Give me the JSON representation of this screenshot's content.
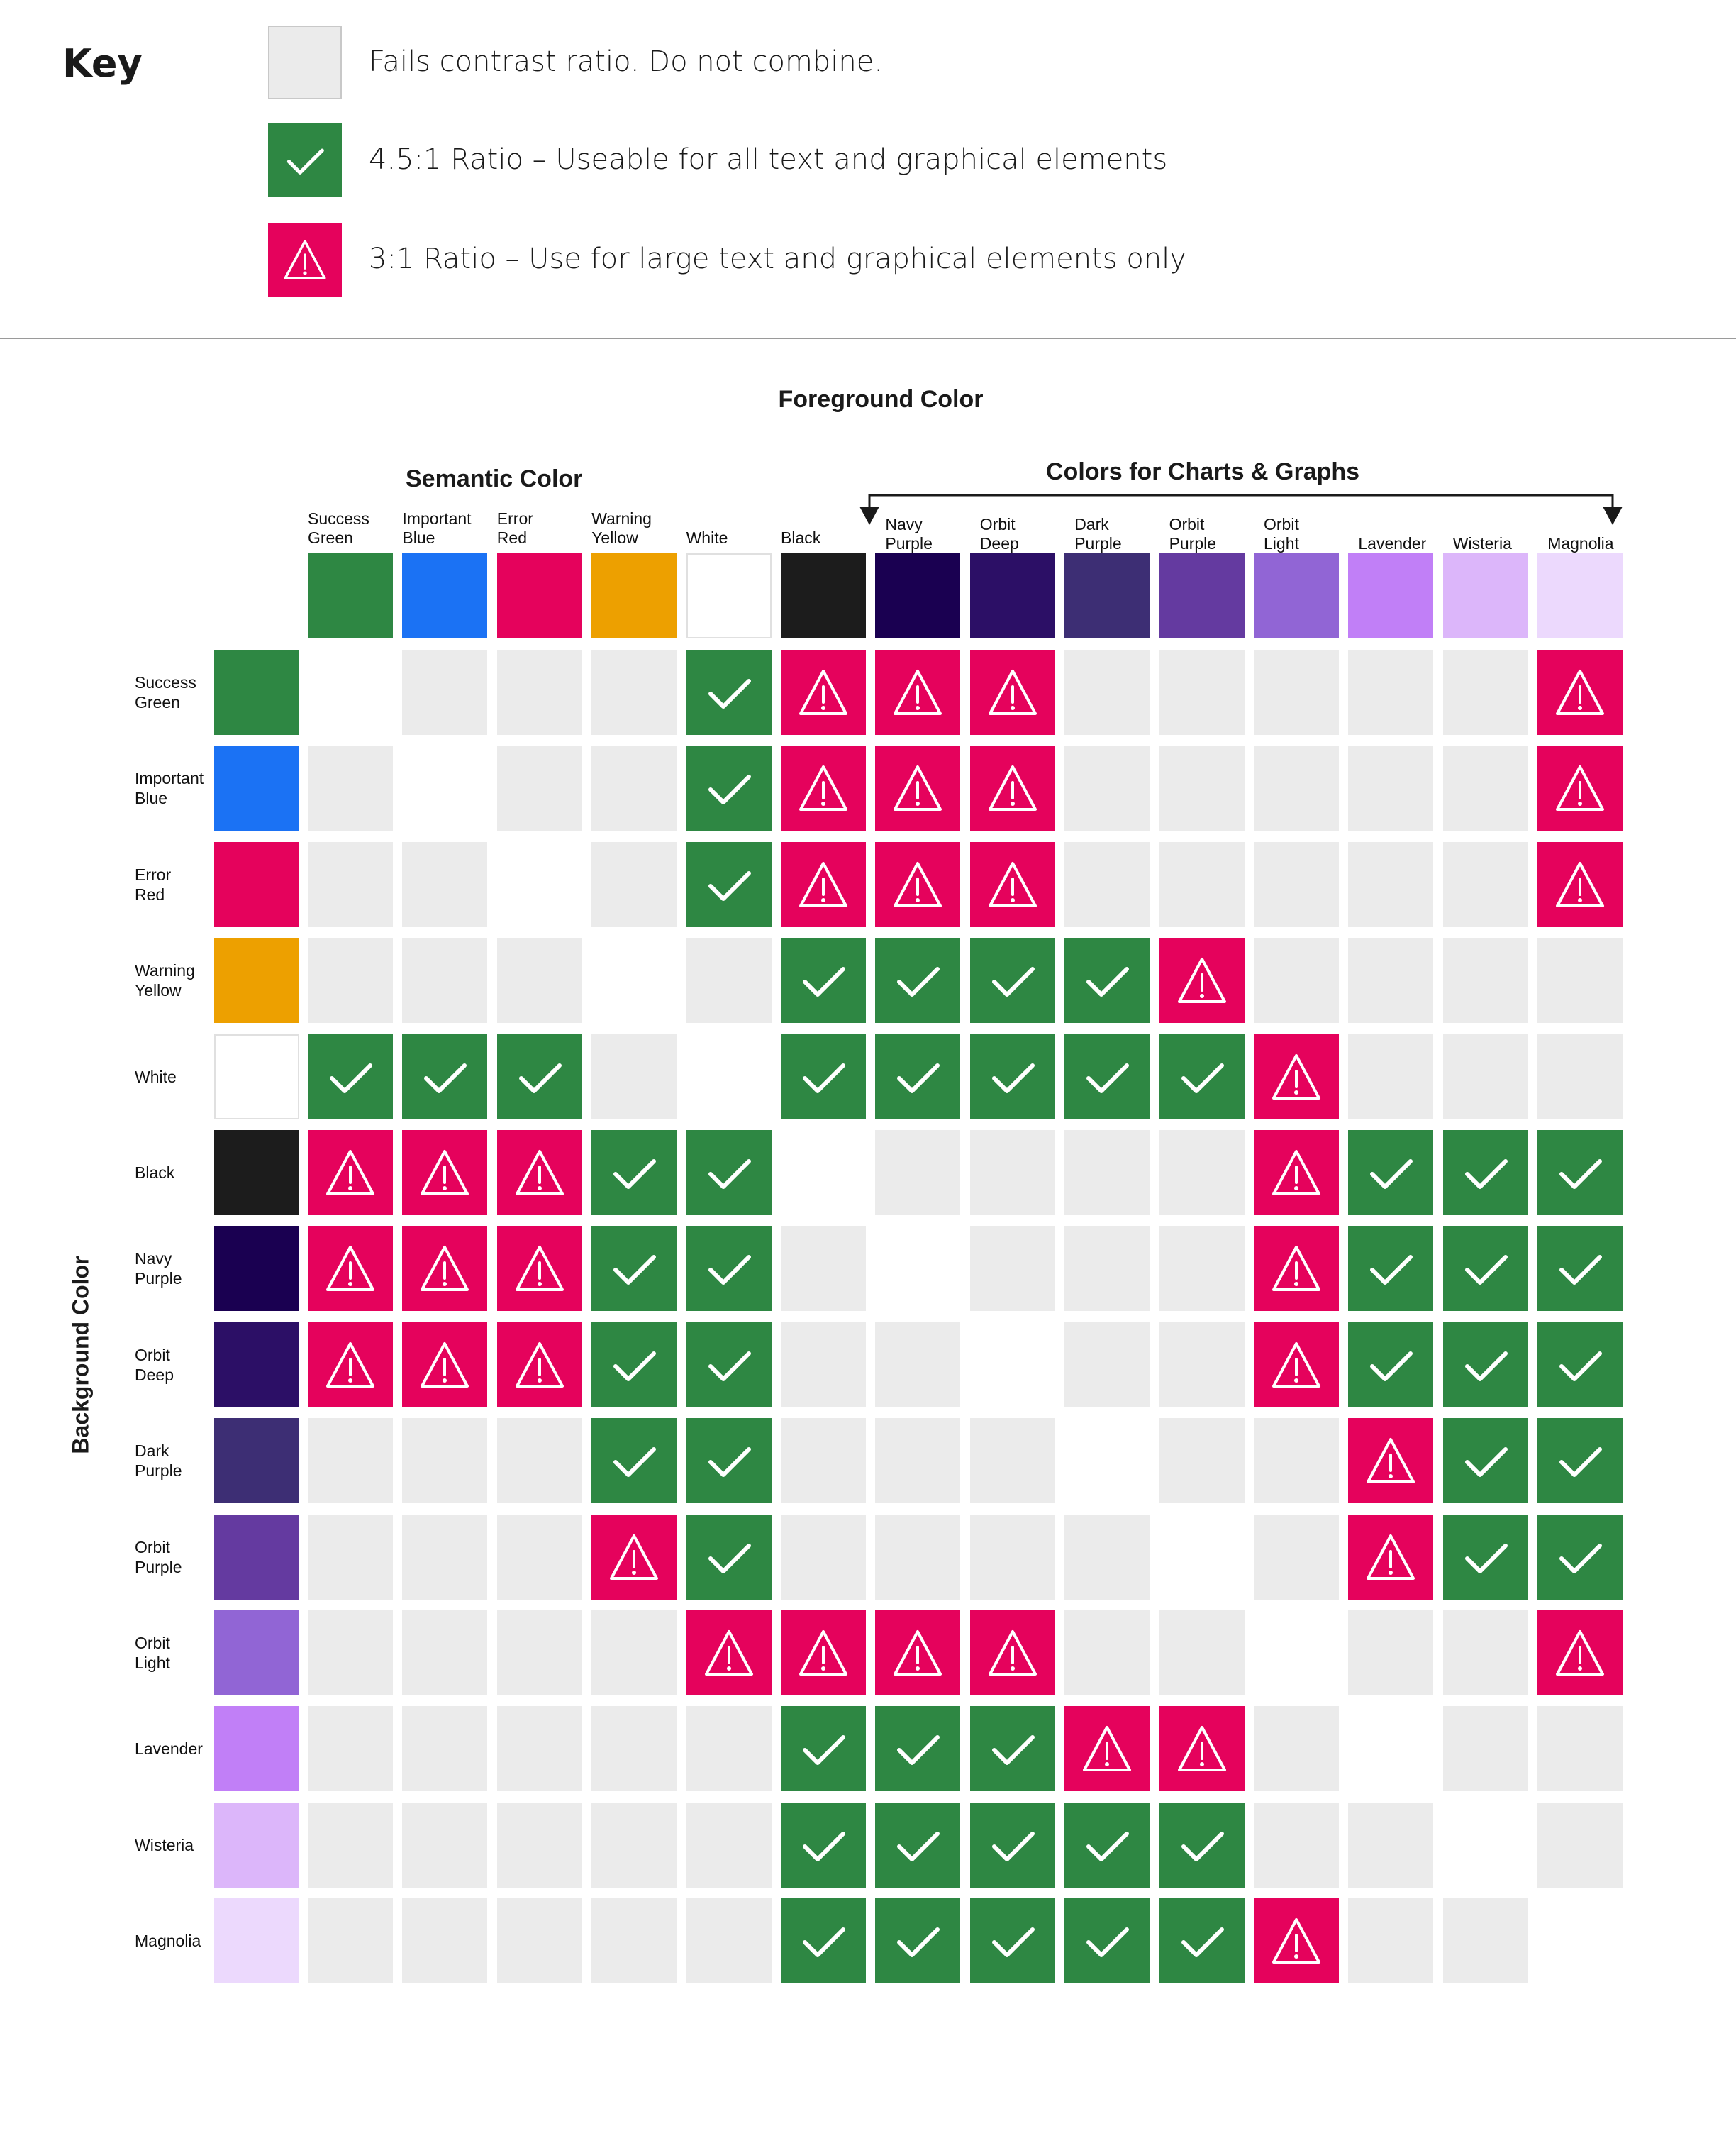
{
  "key": {
    "title": "Key",
    "items": [
      {
        "status": "fail",
        "label": "Fails contrast ratio. Do not combine."
      },
      {
        "status": "pass",
        "label": "4.5:1 Ratio – Useable for all text and graphical elements"
      },
      {
        "status": "warn",
        "label": "3:1 Ratio – Use for large text and graphical elements only"
      }
    ]
  },
  "headings": {
    "foreground": "Foreground Color",
    "semantic": "Semantic Color",
    "charts": "Colors for Charts & Graphs",
    "background": "Background Color"
  },
  "status_colors": {
    "fail": "#ebebeb",
    "pass": "#2e8743",
    "warn": "#e5025c",
    "none": "#ffffff"
  },
  "icons": {
    "pass": "checkmark-icon",
    "warn": "warning-triangle-icon"
  },
  "colors": [
    {
      "lines": [
        "Success",
        "Green"
      ],
      "hex": "#2e8743"
    },
    {
      "lines": [
        "Important",
        "Blue"
      ],
      "hex": "#1b72f4"
    },
    {
      "lines": [
        "Error",
        "Red"
      ],
      "hex": "#e5025c"
    },
    {
      "lines": [
        "Warning",
        "Yellow"
      ],
      "hex": "#eda000"
    },
    {
      "lines": [
        "White"
      ],
      "hex": "#ffffff"
    },
    {
      "lines": [
        "Black"
      ],
      "hex": "#1c1c1c"
    },
    {
      "lines": [
        "Navy",
        "Purple"
      ],
      "hex": "#1a0051"
    },
    {
      "lines": [
        "Orbit",
        "Deep"
      ],
      "hex": "#2c0f66"
    },
    {
      "lines": [
        "Dark",
        "Purple"
      ],
      "hex": "#3d2e74"
    },
    {
      "lines": [
        "Orbit",
        "Purple"
      ],
      "hex": "#643aa0"
    },
    {
      "lines": [
        "Orbit",
        "Light"
      ],
      "hex": "#9165d5"
    },
    {
      "lines": [
        "Lavender"
      ],
      "hex": "#c17ff7"
    },
    {
      "lines": [
        "Wisteria"
      ],
      "hex": "#dcb6fa"
    },
    {
      "lines": [
        "Magnolia"
      ],
      "hex": "#ecd9fd"
    }
  ],
  "matrix": [
    [
      "none",
      "fail",
      "fail",
      "fail",
      "pass",
      "warn",
      "warn",
      "warn",
      "fail",
      "fail",
      "fail",
      "fail",
      "fail",
      "warn"
    ],
    [
      "fail",
      "none",
      "fail",
      "fail",
      "pass",
      "warn",
      "warn",
      "warn",
      "fail",
      "fail",
      "fail",
      "fail",
      "fail",
      "warn"
    ],
    [
      "fail",
      "fail",
      "none",
      "fail",
      "pass",
      "warn",
      "warn",
      "warn",
      "fail",
      "fail",
      "fail",
      "fail",
      "fail",
      "warn"
    ],
    [
      "fail",
      "fail",
      "fail",
      "none",
      "fail",
      "pass",
      "pass",
      "pass",
      "pass",
      "warn",
      "fail",
      "fail",
      "fail",
      "fail"
    ],
    [
      "pass",
      "pass",
      "pass",
      "fail",
      "none",
      "pass",
      "pass",
      "pass",
      "pass",
      "pass",
      "warn",
      "fail",
      "fail",
      "fail"
    ],
    [
      "warn",
      "warn",
      "warn",
      "pass",
      "pass",
      "none",
      "fail",
      "fail",
      "fail",
      "fail",
      "warn",
      "pass",
      "pass",
      "pass"
    ],
    [
      "warn",
      "warn",
      "warn",
      "pass",
      "pass",
      "fail",
      "none",
      "fail",
      "fail",
      "fail",
      "warn",
      "pass",
      "pass",
      "pass"
    ],
    [
      "warn",
      "warn",
      "warn",
      "pass",
      "pass",
      "fail",
      "fail",
      "none",
      "fail",
      "fail",
      "warn",
      "pass",
      "pass",
      "pass"
    ],
    [
      "fail",
      "fail",
      "fail",
      "pass",
      "pass",
      "fail",
      "fail",
      "fail",
      "none",
      "fail",
      "fail",
      "warn",
      "pass",
      "pass"
    ],
    [
      "fail",
      "fail",
      "fail",
      "warn",
      "pass",
      "fail",
      "fail",
      "fail",
      "fail",
      "none",
      "fail",
      "warn",
      "pass",
      "pass"
    ],
    [
      "fail",
      "fail",
      "fail",
      "fail",
      "warn",
      "warn",
      "warn",
      "warn",
      "fail",
      "fail",
      "none",
      "fail",
      "fail",
      "warn"
    ],
    [
      "fail",
      "fail",
      "fail",
      "fail",
      "fail",
      "pass",
      "pass",
      "pass",
      "warn",
      "warn",
      "fail",
      "none",
      "fail",
      "fail"
    ],
    [
      "fail",
      "fail",
      "fail",
      "fail",
      "fail",
      "pass",
      "pass",
      "pass",
      "pass",
      "pass",
      "fail",
      "fail",
      "none",
      "fail"
    ],
    [
      "fail",
      "fail",
      "fail",
      "fail",
      "fail",
      "pass",
      "pass",
      "pass",
      "pass",
      "pass",
      "warn",
      "fail",
      "fail",
      "none"
    ]
  ]
}
